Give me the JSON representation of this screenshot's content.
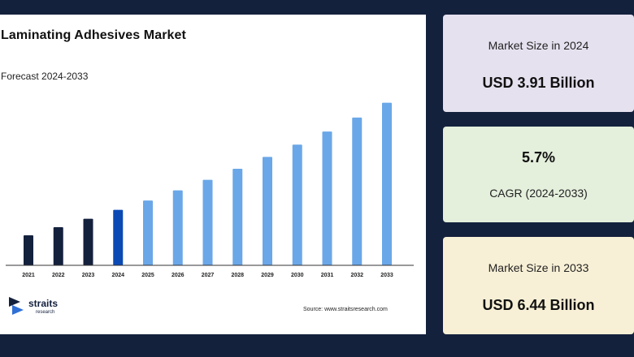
{
  "chart_data": {
    "type": "bar",
    "title": "Laminating Adhesives Market",
    "subtitle": "Forecast 2024-2033",
    "categories": [
      "2021",
      "2022",
      "2023",
      "2024",
      "2025",
      "2026",
      "2027",
      "2028",
      "2029",
      "2030",
      "2031",
      "2032",
      "2033"
    ],
    "values": [
      3.31,
      3.5,
      3.7,
      3.91,
      4.13,
      4.37,
      4.62,
      4.88,
      5.16,
      5.45,
      5.76,
      6.09,
      6.44
    ],
    "highlight_category": "2024",
    "ylim": [
      2.6,
      6.7
    ],
    "grid": false,
    "colors": {
      "historical": "#14213d",
      "base_year": "#0b49b5",
      "forecast": "#6aa7e8"
    }
  },
  "footer": {
    "source": "Source: www.straitsresearch.com",
    "logo_name": "straits",
    "logo_sub": "research"
  },
  "cards": [
    {
      "label": "Market Size in 2024",
      "value": "USD 3.91 Billion"
    },
    {
      "label": "CAGR (2024-2033)",
      "value": "5.7%"
    },
    {
      "label": "Market Size in 2033",
      "value": "USD 6.44 Billion"
    }
  ]
}
